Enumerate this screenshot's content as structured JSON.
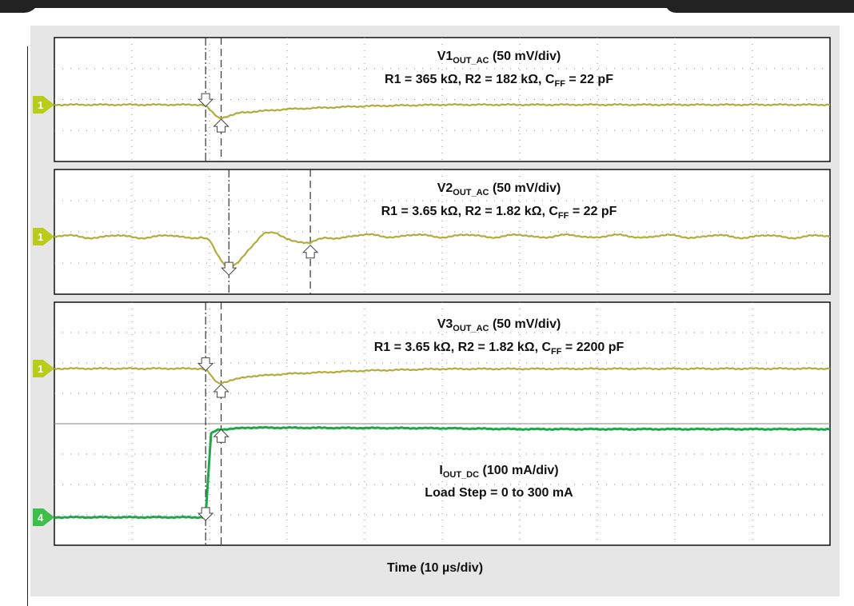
{
  "chart_data": {
    "type": "line",
    "xlabel": "Time (10 µs/div)",
    "x_divisions": 10,
    "y_divisions": 4,
    "grid": true,
    "colors": {
      "voltage_trace": "#b5ab3a",
      "current_trace": "#1ea64a",
      "marker": "#b9cc1c",
      "marker4": "#3ebf4a",
      "cursor": "#333333"
    },
    "panels": [
      {
        "label_main": "V1",
        "label_sub": "OUT_AC",
        "label_tail": " (50 mV/div)",
        "condition": {
          "r1": "R1 = 365 kΩ, R2 = 182 kΩ, C",
          "cff_sub": "FF",
          "tail": " = 22 pF"
        },
        "marker": "1",
        "cursors": [
          1.95,
          2.15
        ],
        "series": [
          {
            "name": "V1OUT_AC",
            "channel": "1",
            "points": [
              [
                0,
                0
              ],
              [
                1.9,
                0
              ],
              [
                1.95,
                -0.05
              ],
              [
                2.05,
                -0.5
              ],
              [
                2.12,
                -0.75
              ],
              [
                2.2,
                -0.7
              ],
              [
                2.4,
                -0.45
              ],
              [
                3,
                -0.25
              ],
              [
                4,
                -0.08
              ],
              [
                5,
                0
              ],
              [
                10,
                0
              ]
            ]
          }
        ]
      },
      {
        "label_main": "V2",
        "label_sub": "OUT_AC",
        "label_tail": " (50 mV/div)",
        "condition": {
          "r1": "R1 = 3.65 kΩ, R2 = 1.82 kΩ, C",
          "cff_sub": "FF",
          "tail": " = 22 pF"
        },
        "marker": "1",
        "cursors": [
          2.25,
          3.3
        ],
        "series": [
          {
            "name": "V2OUT_AC",
            "channel": "1",
            "points": [
              [
                0,
                0
              ],
              [
                1.9,
                0
              ],
              [
                2,
                -0.25
              ],
              [
                2.1,
                -1.1
              ],
              [
                2.22,
                -1.8
              ],
              [
                2.35,
                -1.5
              ],
              [
                2.5,
                -0.7
              ],
              [
                2.7,
                0.1
              ],
              [
                2.85,
                0.2
              ],
              [
                3.05,
                -0.15
              ],
              [
                3.3,
                -0.4
              ],
              [
                3.5,
                -0.1
              ],
              [
                3.8,
                0.05
              ],
              [
                10,
                0
              ]
            ]
          }
        ]
      },
      {
        "label_main": "V3",
        "label_sub": "OUT_AC",
        "label_tail": " (50 mV/div)",
        "condition": {
          "r1": "R1 = 3.65 kΩ, R2 = 1.82 kΩ, C",
          "cff_sub": "FF",
          "tail": " = 2200 pF"
        },
        "label2_main": "I",
        "label2_sub": "OUT_DC",
        "label2_tail": " (100 mA/div)",
        "load_step": "Load Step = 0 to 300 mA",
        "marker": "1",
        "marker2": "4",
        "cursors": [
          1.95,
          2.15
        ],
        "series": [
          {
            "name": "V3OUT_AC",
            "channel": "1",
            "points": [
              [
                0,
                0
              ],
              [
                1.9,
                0
              ],
              [
                1.97,
                -0.1
              ],
              [
                2.05,
                -0.6
              ],
              [
                2.12,
                -0.85
              ],
              [
                2.25,
                -0.7
              ],
              [
                2.5,
                -0.45
              ],
              [
                3,
                -0.3
              ],
              [
                4,
                -0.12
              ],
              [
                5,
                -0.02
              ],
              [
                10,
                0
              ]
            ]
          },
          {
            "name": "IOUT_DC",
            "channel": "4",
            "points": [
              [
                0,
                0
              ],
              [
                1.95,
                0
              ],
              [
                1.99,
                1.6
              ],
              [
                2.02,
                2.75
              ],
              [
                2.1,
                2.88
              ],
              [
                2.5,
                2.95
              ],
              [
                5,
                2.93
              ],
              [
                6,
                2.9
              ],
              [
                10,
                2.9
              ]
            ]
          }
        ]
      }
    ]
  }
}
